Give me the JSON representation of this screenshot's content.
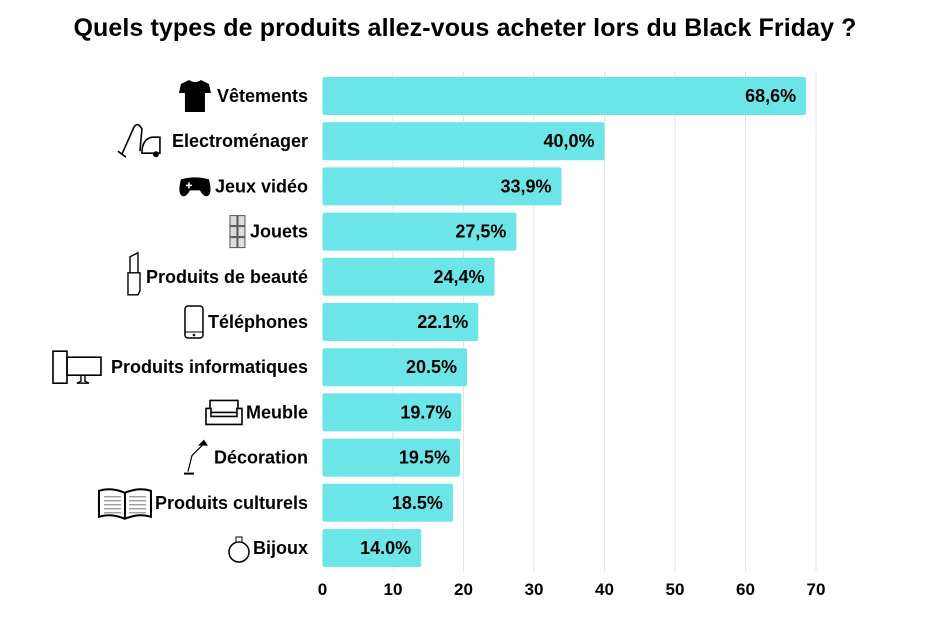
{
  "chart_data": {
    "type": "bar",
    "orientation": "horizontal",
    "title": "Quels types de produits allez-vous acheter lors du Black Friday ?",
    "xlabel": "",
    "ylabel": "",
    "xlim": [
      0,
      70
    ],
    "xticks": [
      "0",
      "10",
      "20",
      "30",
      "40",
      "50",
      "60",
      "70"
    ],
    "grid": true,
    "bar_color": "#6ce5e8",
    "categories": [
      "Vêtements",
      "Electroménager",
      "Jeux vidéo",
      "Jouets",
      "Produits de beauté",
      "Téléphones",
      "Produits informatiques",
      "Meuble",
      "Décoration",
      "Produits culturels",
      "Bijoux"
    ],
    "icons": [
      "tshirt-icon",
      "vacuum-cleaner-icon",
      "gamepad-icon",
      "toy-blocks-icon",
      "lipstick-icon",
      "smartphone-icon",
      "computer-icon",
      "sofa-icon",
      "desk-lamp-icon",
      "open-book-icon",
      "ring-icon"
    ],
    "values": [
      68.6,
      40.0,
      33.9,
      27.5,
      24.4,
      22.1,
      20.5,
      19.7,
      19.5,
      18.5,
      14.0
    ],
    "data_labels": [
      "68,6%",
      "40,0%",
      "33,9%",
      "27,5%",
      "24,4%",
      "22.1%",
      "20.5%",
      "19.7%",
      "19.5%",
      "18.5%",
      "14.0%"
    ]
  }
}
